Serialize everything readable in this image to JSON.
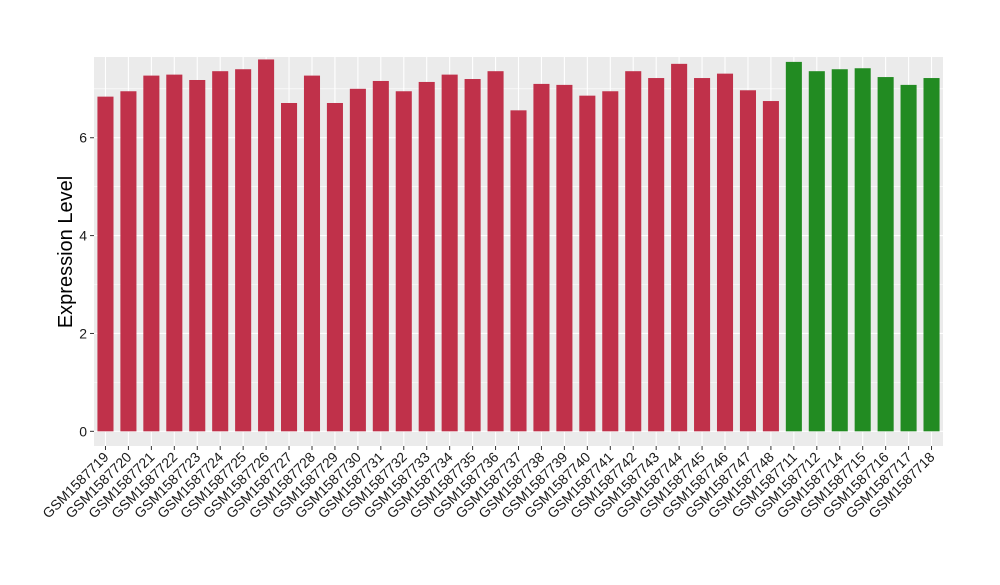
{
  "chart_data": {
    "type": "bar",
    "title": "",
    "xlabel": "",
    "ylabel": "Expression Level",
    "ylim": [
      -0.3,
      7.65
    ],
    "yticks": [
      0,
      2,
      4,
      6
    ],
    "grid": true,
    "legend": "none",
    "colors": {
      "group_a": "#C0314A",
      "group_b": "#228B22",
      "panel_bg": "#EBEBEB",
      "grid": "#FFFFFF"
    },
    "categories": [
      "GSM1587719",
      "GSM1587720",
      "GSM1587721",
      "GSM1587722",
      "GSM1587723",
      "GSM1587724",
      "GSM1587725",
      "GSM1587726",
      "GSM1587727",
      "GSM1587728",
      "GSM1587729",
      "GSM1587730",
      "GSM1587731",
      "GSM1587732",
      "GSM1587733",
      "GSM1587734",
      "GSM1587735",
      "GSM1587736",
      "GSM1587737",
      "GSM1587738",
      "GSM1587739",
      "GSM1587740",
      "GSM1587741",
      "GSM1587742",
      "GSM1587743",
      "GSM1587744",
      "GSM1587745",
      "GSM1587746",
      "GSM1587747",
      "GSM1587748",
      "GSM1587711",
      "GSM1587712",
      "GSM1587714",
      "GSM1587715",
      "GSM1587716",
      "GSM1587717",
      "GSM1587718"
    ],
    "values": [
      6.84,
      6.95,
      7.27,
      7.29,
      7.18,
      7.36,
      7.4,
      7.6,
      6.71,
      7.27,
      6.71,
      7.0,
      7.16,
      6.95,
      7.14,
      7.29,
      7.2,
      7.36,
      6.56,
      7.1,
      7.08,
      6.86,
      6.95,
      7.36,
      7.22,
      7.51,
      7.22,
      7.31,
      6.97,
      6.75,
      7.55,
      7.36,
      7.4,
      7.42,
      7.24,
      7.08,
      7.22
    ],
    "groups": [
      "a",
      "a",
      "a",
      "a",
      "a",
      "a",
      "a",
      "a",
      "a",
      "a",
      "a",
      "a",
      "a",
      "a",
      "a",
      "a",
      "a",
      "a",
      "a",
      "a",
      "a",
      "a",
      "a",
      "a",
      "a",
      "a",
      "a",
      "a",
      "a",
      "a",
      "b",
      "b",
      "b",
      "b",
      "b",
      "b",
      "b"
    ]
  }
}
